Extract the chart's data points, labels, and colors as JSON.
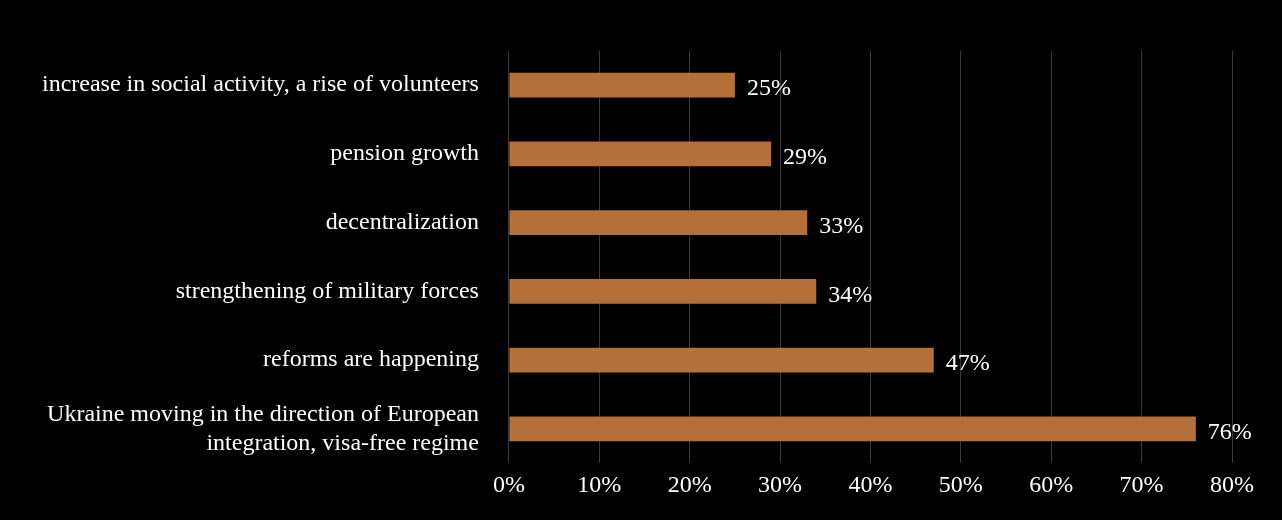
{
  "chart_data": {
    "type": "bar",
    "orientation": "horizontal",
    "categories": [
      "increase in social activity, a rise of volunteers",
      "pension growth",
      "decentralization",
      "strengthening of military forces",
      "reforms are happening",
      "Ukraine moving in the direction of European integration, visa-free regime"
    ],
    "values": [
      25,
      29,
      33,
      34,
      47,
      76
    ],
    "value_labels": [
      "25%",
      "29%",
      "33%",
      "34%",
      "47%",
      "76%"
    ],
    "color": "#b5703a",
    "xlim": [
      0,
      80
    ],
    "xticks": [
      {
        "value": 0,
        "label": "0%"
      },
      {
        "value": 10,
        "label": "10%"
      },
      {
        "value": 20,
        "label": "20%"
      },
      {
        "value": 30,
        "label": "30%"
      },
      {
        "value": 40,
        "label": "40%"
      },
      {
        "value": 50,
        "label": "50%"
      },
      {
        "value": 60,
        "label": "60%"
      },
      {
        "value": 70,
        "label": "70%"
      },
      {
        "value": 80,
        "label": "80%"
      }
    ],
    "grid": "x",
    "legend": false
  }
}
